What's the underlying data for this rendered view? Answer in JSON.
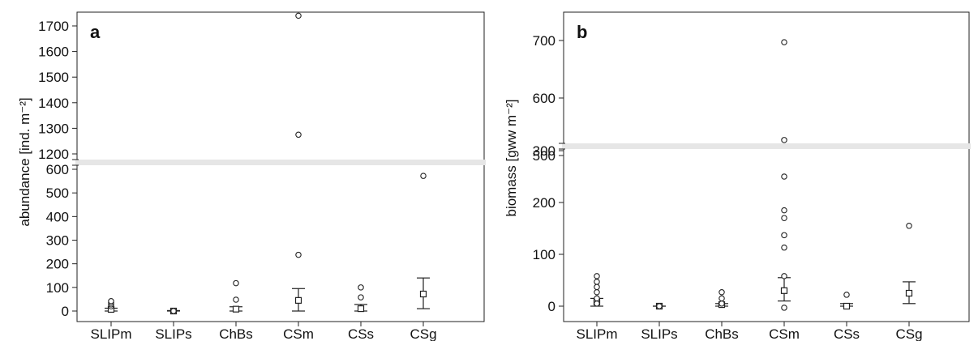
{
  "chart_data": [
    {
      "type": "scatter",
      "panel_label": "a",
      "ylabel": "abundance [ind. m⁻²]",
      "categories": [
        "SLIPm",
        "SLIPs",
        "ChBs",
        "CSm",
        "CSs",
        "CSg"
      ],
      "y_axis_break": true,
      "y_lower_range": [
        0,
        600
      ],
      "y_upper_range": [
        1200,
        1700
      ],
      "y_lower_ticks": [
        0,
        100,
        200,
        300,
        400,
        500,
        600
      ],
      "y_upper_ticks": [
        1200,
        1300,
        1400,
        1500,
        1600,
        1700
      ],
      "series": [
        {
          "name": "mean",
          "values": [
            7,
            0,
            8,
            45,
            10,
            72
          ]
        },
        {
          "name": "whisker_low",
          "values": [
            0,
            0,
            0,
            0,
            0,
            10
          ]
        },
        {
          "name": "whisker_high",
          "values": [
            12,
            2,
            18,
            95,
            28,
            140
          ]
        }
      ],
      "outliers": [
        {
          "category": "SLIPm",
          "values": [
            20,
            28,
            35,
            42
          ]
        },
        {
          "category": "SLIPs",
          "values": [
            0
          ]
        },
        {
          "category": "ChBs",
          "values": [
            48,
            118
          ]
        },
        {
          "category": "CSm",
          "values": [
            238,
            1275,
            1740
          ]
        },
        {
          "category": "CSs",
          "values": [
            58,
            100
          ]
        },
        {
          "category": "CSg",
          "values": [
            572
          ]
        }
      ]
    },
    {
      "type": "scatter",
      "panel_label": "b",
      "ylabel": "biomass [gww m⁻²]",
      "categories": [
        "SLIPm",
        "SLIPs",
        "ChBs",
        "CSm",
        "CSs",
        "CSg"
      ],
      "y_axis_break": true,
      "y_lower_range": [
        0,
        300
      ],
      "y_upper_range": [
        500,
        700
      ],
      "y_lower_ticks": [
        0,
        100,
        200,
        300
      ],
      "y_upper_ticks": [
        500,
        600,
        700
      ],
      "series": [
        {
          "name": "mean",
          "values": [
            8,
            0,
            3,
            30,
            0,
            25
          ]
        },
        {
          "name": "whisker_low",
          "values": [
            0,
            0,
            0,
            10,
            0,
            5
          ]
        },
        {
          "name": "whisker_high",
          "values": [
            15,
            0,
            5,
            55,
            5,
            47
          ]
        }
      ],
      "outliers": [
        {
          "category": "SLIPm",
          "values": [
            5,
            15,
            27,
            37,
            47,
            58
          ]
        },
        {
          "category": "SLIPs",
          "values": [
            0
          ]
        },
        {
          "category": "ChBs",
          "values": [
            5,
            15,
            27
          ]
        },
        {
          "category": "CSm",
          "values": [
            -3,
            58,
            113,
            137,
            170,
            185,
            250,
            527,
            697
          ]
        },
        {
          "category": "CSs",
          "values": [
            22
          ]
        },
        {
          "category": "CSg",
          "values": [
            155
          ]
        }
      ]
    }
  ]
}
